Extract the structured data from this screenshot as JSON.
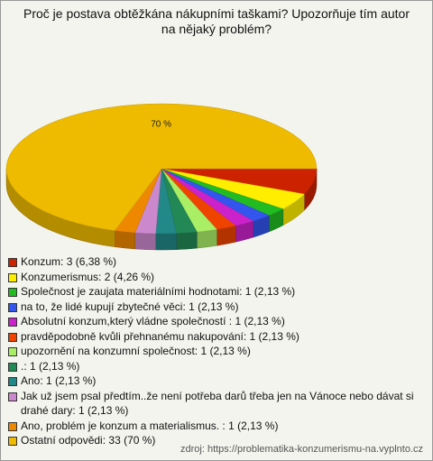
{
  "chart_data": {
    "type": "pie",
    "title": "Proč je postava obtěžkána nákupními taškami? Upozorňuje tím autor na nějaký problém?",
    "categories": [
      "Konzum: 3 (6,38 %)",
      "Konzumerismus: 2 (4,26 %)",
      "Společnost je zaujata materiálními hodnotami: 1 (2,13 %)",
      "na to, že lidé kupují zbytečné věci: 1 (2,13 %)",
      "Absolutní konzum,který vládne společností : 1 (2,13 %)",
      "pravděpodobně kvůli přehnanému nakupování: 1 (2,13 %)",
      "upozornění na konzumní společnost: 1 (2,13 %)",
      ".: 1 (2,13 %)",
      "Ano: 1 (2,13 %)",
      "Jak už jsem psal předtím..že není potřeba darů třeba jen na Vánoce nebo dávat si drahé dary: 1 (2,13 %)",
      "Ano, problém je konzum a materialismus. : 1 (2,13 %)",
      "Ostatní odpovědi: 33 (70 %)"
    ],
    "values": [
      6.38,
      4.26,
      2.13,
      2.13,
      2.13,
      2.13,
      2.13,
      2.13,
      2.13,
      2.13,
      2.13,
      70
    ],
    "value_labels": [
      null,
      null,
      null,
      null,
      null,
      null,
      null,
      null,
      null,
      null,
      null,
      "70 %"
    ],
    "colors": [
      "#cc2200",
      "#ffee00",
      "#22bb22",
      "#3355ee",
      "#cc22cc",
      "#ee4400",
      "#aaee66",
      "#228855",
      "#228888",
      "#cc88cc",
      "#ee8800",
      "#eebb00"
    ],
    "source": "zdroj: https://problematika-konzumerismu-na.vyplnto.cz"
  }
}
